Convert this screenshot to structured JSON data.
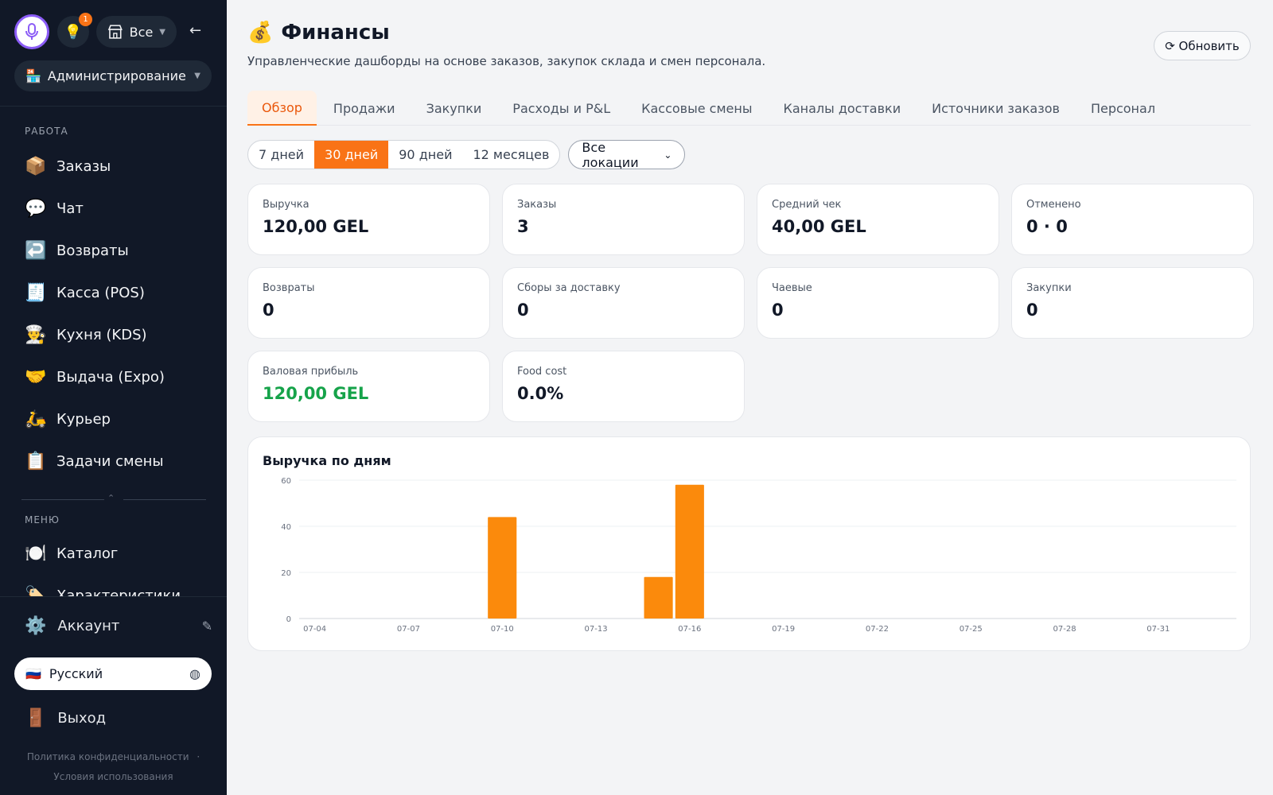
{
  "sidebar": {
    "store_label": "Все",
    "notif_count": "1",
    "back_arrow": "←",
    "role_label": "Администрирование",
    "role_emoji": "🏪",
    "sections": {
      "work": "РАБОТА",
      "menu": "МЕНЮ"
    },
    "work_items": [
      {
        "emoji": "📦",
        "label": "Заказы"
      },
      {
        "emoji": "💬",
        "label": "Чат"
      },
      {
        "emoji": "↩️",
        "label": "Возвраты"
      },
      {
        "emoji": "🧾",
        "label": "Касса (POS)"
      },
      {
        "emoji": "👨‍🍳",
        "label": "Кухня (KDS)"
      },
      {
        "emoji": "🤝",
        "label": "Выдача (Expo)"
      },
      {
        "emoji": "🛵",
        "label": "Курьер"
      },
      {
        "emoji": "📋",
        "label": "Задачи смены"
      }
    ],
    "menu_items": [
      {
        "emoji": "🍽️",
        "label": "Каталог"
      },
      {
        "emoji": "🏷️",
        "label": "Характеристики"
      }
    ],
    "account_label": "Аккаунт",
    "account_emoji": "⚙️",
    "language_label": "Русский",
    "language_flag": "🇷🇺",
    "logout_label": "Выход",
    "logout_emoji": "🚪",
    "privacy": "Политика конфиденциальности",
    "privacy_sep": "·",
    "terms": "Условия использования"
  },
  "header": {
    "emoji": "💰",
    "title": "Финансы",
    "subtitle": "Управленческие дашборды на основе заказов, закупок склада и смен персонала.",
    "refresh_label": "⟳ Обновить"
  },
  "tabs": [
    "Обзор",
    "Продажи",
    "Закупки",
    "Расходы и P&L",
    "Кассовые смены",
    "Каналы доставки",
    "Источники заказов",
    "Персонал"
  ],
  "filters": {
    "periods": [
      "7 дней",
      "30 дней",
      "90 дней",
      "12 месяцев"
    ],
    "active_period": "30 дней",
    "location": "Все локации"
  },
  "kpis": [
    {
      "label": "Выручка",
      "value": "120,00 GEL"
    },
    {
      "label": "Заказы",
      "value": "3"
    },
    {
      "label": "Средний чек",
      "value": "40,00 GEL"
    },
    {
      "label": "Отменено",
      "value": "0 · 0"
    },
    {
      "label": "Возвраты",
      "value": "0"
    },
    {
      "label": "Сборы за доставку",
      "value": "0"
    },
    {
      "label": "Чаевые",
      "value": "0"
    },
    {
      "label": "Закупки",
      "value": "0"
    },
    {
      "label": "Валовая прибыль",
      "value": "120,00 GEL"
    },
    {
      "label": "Food cost",
      "value": "0.0%"
    }
  ],
  "colors": {
    "accent": "#f97316",
    "bar": "#fb8a0c",
    "positive": "#16a34a",
    "sidebar_bg": "#111827"
  },
  "chart_data": {
    "type": "bar",
    "title": "Выручка по дням",
    "ylim": [
      0,
      60
    ],
    "yticks": [
      0,
      20,
      40,
      60
    ],
    "xtick_labels": [
      "07-04",
      "07-07",
      "07-10",
      "07-13",
      "07-16",
      "07-19",
      "07-22",
      "07-25",
      "07-28",
      "07-31"
    ],
    "categories": [
      "07-04",
      "07-05",
      "07-06",
      "07-07",
      "07-08",
      "07-09",
      "07-10",
      "07-11",
      "07-12",
      "07-13",
      "07-14",
      "07-15",
      "07-16",
      "07-17",
      "07-18",
      "07-19",
      "07-20",
      "07-21",
      "07-22",
      "07-23",
      "07-24",
      "07-25",
      "07-26",
      "07-27",
      "07-28",
      "07-29",
      "07-30",
      "07-31",
      "08-01",
      "08-02"
    ],
    "values": [
      0,
      0,
      0,
      0,
      0,
      0,
      44,
      0,
      0,
      0,
      0,
      18,
      58,
      0,
      0,
      0,
      0,
      0,
      0,
      0,
      0,
      0,
      0,
      0,
      0,
      0,
      0,
      0,
      0,
      0
    ],
    "grid": true,
    "legend": false
  }
}
